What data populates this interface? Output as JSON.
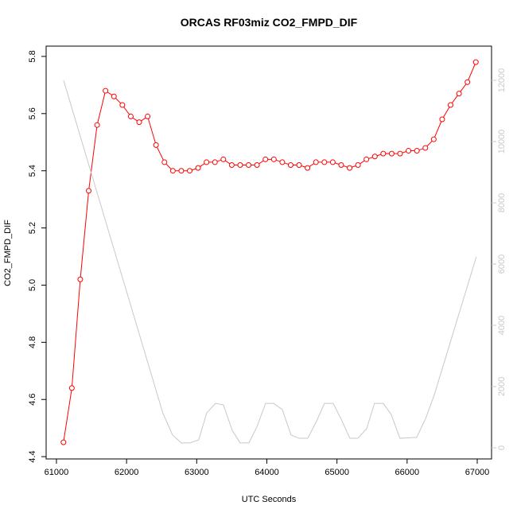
{
  "chart_data": {
    "type": "line",
    "title": "ORCAS RF03miz CO2_FMPD_DIF",
    "xlabel": "UTC Seconds",
    "ylabel": "CO2_FMPD_DIF",
    "xlim": [
      60853,
      67204
    ],
    "xticks": [
      61000,
      62000,
      63000,
      64000,
      65000,
      66000,
      67000
    ],
    "ylim": [
      4.392,
      5.836
    ],
    "yticks": [
      4.4,
      4.6,
      4.8,
      {
        "value": 5,
        "label": "5.0"
      },
      5.2,
      5.4,
      5.6,
      5.8
    ],
    "y2lim": [
      -364,
      13117
    ],
    "y2ticks": [
      0,
      2000,
      4000,
      6000,
      8000,
      10000,
      12000
    ],
    "series": [
      {
        "color": "#ff0000",
        "markers": true,
        "x": [
          61100,
          61220,
          61340,
          61460,
          61580,
          61700,
          61820,
          61940,
          62060,
          62180,
          62300,
          62420,
          62540,
          62660,
          62780,
          62900,
          63020,
          63140,
          63260,
          63380,
          63500,
          63620,
          63740,
          63860,
          63980,
          64100,
          64220,
          64340,
          64460,
          64580,
          64700,
          64820,
          64940,
          65060,
          65180,
          65300,
          65420,
          65540,
          65660,
          65780,
          65900,
          66020,
          66140,
          66260,
          66380,
          66500,
          66620,
          66740,
          66860,
          66980
        ],
        "values": [
          4.45,
          4.64,
          5.02,
          5.33,
          5.56,
          5.68,
          5.66,
          5.63,
          5.59,
          5.57,
          5.59,
          5.49,
          5.43,
          5.4,
          5.4,
          5.4,
          5.41,
          5.43,
          5.43,
          5.44,
          5.42,
          5.42,
          5.42,
          5.42,
          5.44,
          5.44,
          5.43,
          5.42,
          5.42,
          5.41,
          5.43,
          5.43,
          5.43,
          5.42,
          5.41,
          5.42,
          5.44,
          5.45,
          5.46,
          5.46,
          5.46,
          5.47,
          5.47,
          5.48,
          5.51,
          5.58,
          5.63,
          5.67,
          5.71,
          5.78
        ]
      },
      {
        "color": "#c8c8c8",
        "axis": "y2",
        "markers": false,
        "x": [
          61102,
          62519,
          62655,
          62780,
          62905,
          63029,
          63143,
          63268,
          63381,
          63506,
          63619,
          63744,
          63857,
          63982,
          64095,
          64220,
          64345,
          64458,
          64583,
          64707,
          64821,
          64946,
          65059,
          65184,
          65297,
          65422,
          65535,
          65660,
          65773,
          65898,
          66136,
          66261,
          66385,
          66986
        ],
        "values": [
          12000,
          1120,
          420,
          160,
          160,
          260,
          1140,
          1450,
          1400,
          570,
          160,
          160,
          680,
          1450,
          1450,
          1250,
          420,
          310,
          310,
          860,
          1450,
          1450,
          940,
          310,
          310,
          620,
          1450,
          1450,
          1090,
          310,
          340,
          940,
          1710,
          6230
        ]
      }
    ]
  }
}
